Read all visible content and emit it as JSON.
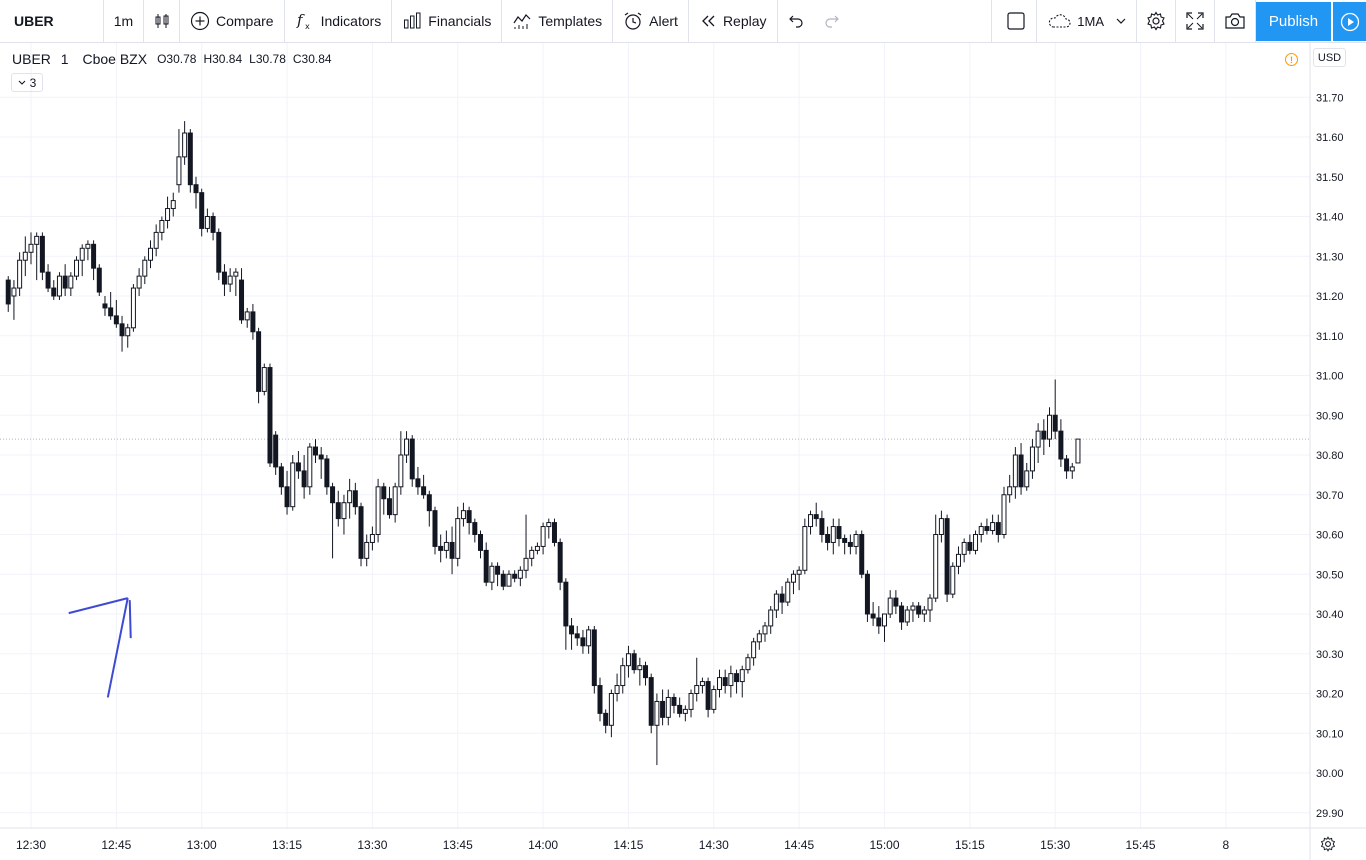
{
  "toolbar": {
    "symbol": "UBER",
    "interval": "1m",
    "compare_label": "Compare",
    "indicators_label": "Indicators",
    "financials_label": "Financials",
    "templates_label": "Templates",
    "alert_label": "Alert",
    "replay_label": "Replay",
    "layout_label": "1MA",
    "publish_label": "Publish"
  },
  "legend": {
    "symbol": "UBER",
    "interval": "1",
    "exchange": "Cboe BZX",
    "open_label": "O",
    "open": "30.78",
    "high_label": "H",
    "high": "30.84",
    "low_label": "L",
    "low": "30.78",
    "close_label": "C",
    "close": "30.84",
    "indicators_count": "3"
  },
  "price_axis": {
    "currency": "USD"
  },
  "colors": {
    "accent": "#2196f3",
    "candle": "#131722",
    "grid": "#f0f3fa",
    "annotation": "#3f4ad2",
    "warning": "#ff9800"
  },
  "chart_data": {
    "type": "candlestick",
    "title": "UBER · 1 · Cboe BZX",
    "ylim": [
      29.86,
      31.8
    ],
    "y_ticks": [
      "29.90",
      "30.00",
      "30.10",
      "30.20",
      "30.30",
      "30.40",
      "30.50",
      "30.60",
      "30.70",
      "30.80",
      "30.90",
      "31.00",
      "31.10",
      "31.20",
      "31.30",
      "31.40",
      "31.50",
      "31.60",
      "31.70"
    ],
    "x_ticks": [
      "12:30",
      "12:45",
      "13:00",
      "13:15",
      "13:30",
      "13:45",
      "14:00",
      "14:15",
      "14:30",
      "14:45",
      "15:00",
      "15:15",
      "15:30",
      "15:45",
      "8"
    ],
    "x_tick_minutes": [
      0,
      15,
      30,
      45,
      60,
      75,
      90,
      105,
      120,
      135,
      150,
      165,
      180,
      195,
      210
    ],
    "first_bar_minute": -4,
    "last_close": 30.84,
    "grid": true,
    "candles": [
      [
        31.24,
        31.25,
        31.16,
        31.18
      ],
      [
        31.2,
        31.24,
        31.14,
        31.22
      ],
      [
        31.22,
        31.31,
        31.2,
        31.29
      ],
      [
        31.29,
        31.35,
        31.25,
        31.31
      ],
      [
        31.31,
        31.36,
        31.28,
        31.33
      ],
      [
        31.33,
        31.36,
        31.24,
        31.35
      ],
      [
        31.35,
        31.36,
        31.24,
        31.26
      ],
      [
        31.26,
        31.28,
        31.21,
        31.22
      ],
      [
        31.22,
        31.24,
        31.19,
        31.2
      ],
      [
        31.2,
        31.26,
        31.19,
        31.25
      ],
      [
        31.25,
        31.28,
        31.2,
        31.22
      ],
      [
        31.22,
        31.26,
        31.2,
        31.25
      ],
      [
        31.25,
        31.3,
        31.24,
        31.29
      ],
      [
        31.29,
        31.33,
        31.25,
        31.32
      ],
      [
        31.32,
        31.34,
        31.29,
        31.33
      ],
      [
        31.33,
        31.34,
        31.24,
        31.27
      ],
      [
        31.27,
        31.28,
        31.2,
        31.21
      ],
      [
        31.18,
        31.2,
        31.15,
        31.17
      ],
      [
        31.17,
        31.21,
        31.14,
        31.15
      ],
      [
        31.15,
        31.19,
        31.12,
        31.13
      ],
      [
        31.13,
        31.15,
        31.06,
        31.1
      ],
      [
        31.1,
        31.13,
        31.07,
        31.12
      ],
      [
        31.12,
        31.23,
        31.11,
        31.22
      ],
      [
        31.22,
        31.27,
        31.2,
        31.25
      ],
      [
        31.25,
        31.3,
        31.23,
        31.29
      ],
      [
        31.29,
        31.34,
        31.27,
        31.32
      ],
      [
        31.32,
        31.38,
        31.3,
        31.36
      ],
      [
        31.36,
        31.4,
        31.34,
        31.39
      ],
      [
        31.39,
        31.45,
        31.37,
        31.42
      ],
      [
        31.42,
        31.46,
        31.4,
        31.44
      ],
      [
        31.48,
        31.62,
        31.46,
        31.55
      ],
      [
        31.55,
        31.64,
        31.53,
        31.61
      ],
      [
        31.61,
        31.62,
        31.46,
        31.48
      ],
      [
        31.48,
        31.5,
        31.42,
        31.46
      ],
      [
        31.46,
        31.47,
        31.35,
        31.37
      ],
      [
        31.37,
        31.42,
        31.36,
        31.4
      ],
      [
        31.4,
        31.41,
        31.34,
        31.36
      ],
      [
        31.36,
        31.37,
        31.24,
        31.26
      ],
      [
        31.26,
        31.28,
        31.2,
        31.23
      ],
      [
        31.23,
        31.27,
        31.21,
        31.25
      ],
      [
        31.25,
        31.27,
        31.2,
        31.26
      ],
      [
        31.24,
        31.27,
        31.13,
        31.14
      ],
      [
        31.14,
        31.17,
        31.12,
        31.16
      ],
      [
        31.16,
        31.18,
        31.09,
        31.11
      ],
      [
        31.11,
        31.12,
        30.93,
        30.96
      ],
      [
        30.96,
        31.03,
        30.95,
        31.02
      ],
      [
        31.02,
        31.03,
        30.77,
        30.78
      ],
      [
        30.85,
        30.86,
        30.75,
        30.77
      ],
      [
        30.77,
        30.78,
        30.7,
        30.72
      ],
      [
        30.72,
        30.76,
        30.65,
        30.67
      ],
      [
        30.67,
        30.8,
        30.66,
        30.78
      ],
      [
        30.78,
        30.81,
        30.74,
        30.76
      ],
      [
        30.76,
        30.8,
        30.69,
        30.72
      ],
      [
        30.72,
        30.83,
        30.7,
        30.82
      ],
      [
        30.82,
        30.84,
        30.78,
        30.8
      ],
      [
        30.8,
        30.82,
        30.74,
        30.79
      ],
      [
        30.79,
        30.8,
        30.7,
        30.72
      ],
      [
        30.72,
        30.73,
        30.54,
        30.68
      ],
      [
        30.68,
        30.71,
        30.62,
        30.64
      ],
      [
        30.64,
        30.7,
        30.6,
        30.68
      ],
      [
        30.68,
        30.74,
        30.64,
        30.71
      ],
      [
        30.71,
        30.73,
        30.65,
        30.67
      ],
      [
        30.67,
        30.68,
        30.52,
        30.54
      ],
      [
        30.54,
        30.6,
        30.52,
        30.58
      ],
      [
        30.58,
        30.62,
        30.56,
        30.6
      ],
      [
        30.6,
        30.74,
        30.58,
        30.72
      ],
      [
        30.72,
        30.73,
        30.65,
        30.69
      ],
      [
        30.69,
        30.72,
        30.64,
        30.65
      ],
      [
        30.65,
        30.73,
        30.63,
        30.72
      ],
      [
        30.72,
        30.86,
        30.7,
        30.8
      ],
      [
        30.8,
        30.86,
        30.78,
        30.84
      ],
      [
        30.84,
        30.85,
        30.72,
        30.74
      ],
      [
        30.74,
        30.77,
        30.7,
        30.72
      ],
      [
        30.72,
        30.75,
        30.69,
        30.7
      ],
      [
        30.7,
        30.71,
        30.62,
        30.66
      ],
      [
        30.66,
        30.67,
        30.55,
        30.57
      ],
      [
        30.57,
        30.6,
        30.53,
        30.56
      ],
      [
        30.56,
        30.61,
        30.54,
        30.58
      ],
      [
        30.58,
        30.62,
        30.5,
        30.54
      ],
      [
        30.54,
        30.67,
        30.52,
        30.64
      ],
      [
        30.64,
        30.68,
        30.62,
        30.66
      ],
      [
        30.66,
        30.67,
        30.6,
        30.63
      ],
      [
        30.63,
        30.64,
        30.58,
        30.6
      ],
      [
        30.6,
        30.61,
        30.54,
        30.56
      ],
      [
        30.56,
        30.58,
        30.47,
        30.48
      ],
      [
        30.48,
        30.53,
        30.46,
        30.52
      ],
      [
        30.52,
        30.53,
        30.47,
        30.5
      ],
      [
        30.5,
        30.51,
        30.46,
        30.47
      ],
      [
        30.47,
        30.51,
        30.47,
        30.5
      ],
      [
        30.5,
        30.51,
        30.48,
        30.49
      ],
      [
        30.49,
        30.52,
        30.47,
        30.51
      ],
      [
        30.51,
        30.65,
        30.49,
        30.54
      ],
      [
        30.54,
        30.57,
        30.52,
        30.56
      ],
      [
        30.56,
        30.58,
        30.55,
        30.57
      ],
      [
        30.57,
        30.63,
        30.55,
        30.62
      ],
      [
        30.62,
        30.64,
        30.59,
        30.63
      ],
      [
        30.63,
        30.64,
        30.57,
        30.58
      ],
      [
        30.58,
        30.59,
        30.46,
        30.48
      ],
      [
        30.48,
        30.49,
        30.31,
        30.37
      ],
      [
        30.37,
        30.39,
        30.31,
        30.35
      ],
      [
        30.35,
        30.37,
        30.32,
        30.34
      ],
      [
        30.34,
        30.36,
        30.3,
        30.32
      ],
      [
        30.32,
        30.37,
        30.3,
        30.36
      ],
      [
        30.36,
        30.37,
        30.2,
        30.22
      ],
      [
        30.22,
        30.24,
        30.13,
        30.15
      ],
      [
        30.15,
        30.16,
        30.1,
        30.12
      ],
      [
        30.12,
        30.21,
        30.09,
        30.2
      ],
      [
        30.2,
        30.25,
        30.18,
        30.22
      ],
      [
        30.22,
        30.29,
        30.2,
        30.27
      ],
      [
        30.27,
        30.32,
        30.24,
        30.3
      ],
      [
        30.3,
        30.31,
        30.25,
        30.26
      ],
      [
        30.26,
        30.29,
        30.22,
        30.27
      ],
      [
        30.27,
        30.28,
        30.22,
        30.24
      ],
      [
        30.24,
        30.25,
        30.1,
        30.12
      ],
      [
        30.12,
        30.2,
        30.02,
        30.18
      ],
      [
        30.18,
        30.21,
        30.12,
        30.14
      ],
      [
        30.14,
        30.21,
        30.12,
        30.19
      ],
      [
        30.19,
        30.2,
        30.15,
        30.17
      ],
      [
        30.17,
        30.19,
        30.14,
        30.15
      ],
      [
        30.15,
        30.17,
        30.13,
        30.16
      ],
      [
        30.16,
        30.21,
        30.14,
        30.2
      ],
      [
        30.2,
        30.29,
        30.18,
        30.22
      ],
      [
        30.22,
        30.24,
        30.2,
        30.23
      ],
      [
        30.23,
        30.24,
        30.14,
        30.16
      ],
      [
        30.16,
        30.22,
        30.15,
        30.21
      ],
      [
        30.21,
        30.26,
        30.19,
        30.24
      ],
      [
        30.24,
        30.26,
        30.2,
        30.22
      ],
      [
        30.22,
        30.27,
        30.19,
        30.25
      ],
      [
        30.25,
        30.26,
        30.2,
        30.23
      ],
      [
        30.23,
        30.27,
        30.19,
        30.26
      ],
      [
        30.26,
        30.3,
        30.25,
        30.29
      ],
      [
        30.29,
        30.34,
        30.27,
        30.33
      ],
      [
        30.33,
        30.36,
        30.31,
        30.35
      ],
      [
        30.35,
        30.38,
        30.33,
        30.37
      ],
      [
        30.37,
        30.42,
        30.35,
        30.41
      ],
      [
        30.41,
        30.46,
        30.39,
        30.45
      ],
      [
        30.45,
        30.47,
        30.4,
        30.43
      ],
      [
        30.43,
        30.49,
        30.42,
        30.48
      ],
      [
        30.48,
        30.51,
        30.45,
        30.5
      ],
      [
        30.5,
        30.52,
        30.46,
        30.51
      ],
      [
        30.51,
        30.64,
        30.5,
        30.62
      ],
      [
        30.62,
        30.66,
        30.6,
        30.65
      ],
      [
        30.65,
        30.68,
        30.62,
        30.64
      ],
      [
        30.64,
        30.66,
        30.58,
        30.6
      ],
      [
        30.6,
        30.62,
        30.56,
        30.58
      ],
      [
        30.58,
        30.64,
        30.55,
        30.62
      ],
      [
        30.62,
        30.64,
        30.57,
        30.59
      ],
      [
        30.59,
        30.6,
        30.55,
        30.58
      ],
      [
        30.58,
        30.6,
        30.55,
        30.57
      ],
      [
        30.57,
        30.61,
        30.55,
        30.6
      ],
      [
        30.6,
        30.61,
        30.49,
        30.5
      ],
      [
        30.5,
        30.51,
        30.38,
        30.4
      ],
      [
        30.4,
        30.43,
        30.37,
        30.39
      ],
      [
        30.39,
        30.42,
        30.35,
        30.37
      ],
      [
        30.37,
        30.4,
        30.33,
        30.4
      ],
      [
        30.4,
        30.46,
        30.39,
        30.44
      ],
      [
        30.44,
        30.46,
        30.4,
        30.42
      ],
      [
        30.42,
        30.43,
        30.36,
        30.38
      ],
      [
        30.38,
        30.42,
        30.37,
        30.41
      ],
      [
        30.41,
        30.43,
        30.38,
        30.42
      ],
      [
        30.42,
        30.43,
        30.39,
        30.4
      ],
      [
        30.4,
        30.42,
        30.38,
        30.41
      ],
      [
        30.41,
        30.45,
        30.38,
        30.44
      ],
      [
        30.44,
        30.65,
        30.43,
        30.6
      ],
      [
        30.6,
        30.66,
        30.58,
        30.64
      ],
      [
        30.64,
        30.65,
        30.43,
        30.45
      ],
      [
        30.45,
        30.53,
        30.44,
        30.52
      ],
      [
        30.52,
        30.57,
        30.5,
        30.55
      ],
      [
        30.55,
        30.59,
        30.53,
        30.58
      ],
      [
        30.58,
        30.6,
        30.55,
        30.56
      ],
      [
        30.56,
        30.61,
        30.55,
        30.6
      ],
      [
        30.6,
        30.63,
        30.58,
        30.62
      ],
      [
        30.62,
        30.64,
        30.6,
        30.61
      ],
      [
        30.61,
        30.65,
        30.6,
        30.63
      ],
      [
        30.63,
        30.65,
        30.58,
        30.6
      ],
      [
        30.6,
        30.72,
        30.59,
        30.7
      ],
      [
        30.7,
        30.75,
        30.68,
        30.72
      ],
      [
        30.72,
        30.82,
        30.69,
        30.8
      ],
      [
        30.8,
        30.83,
        30.7,
        30.72
      ],
      [
        30.72,
        30.78,
        30.71,
        30.76
      ],
      [
        30.76,
        30.84,
        30.74,
        30.82
      ],
      [
        30.82,
        30.88,
        30.78,
        30.86
      ],
      [
        30.86,
        30.89,
        30.8,
        30.84
      ],
      [
        30.84,
        30.92,
        30.82,
        30.9
      ],
      [
        30.9,
        30.99,
        30.84,
        30.86
      ],
      [
        30.86,
        30.89,
        30.77,
        30.79
      ],
      [
        30.79,
        30.8,
        30.74,
        30.76
      ],
      [
        30.76,
        30.78,
        30.74,
        30.77
      ],
      [
        30.78,
        30.84,
        30.78,
        30.84
      ]
    ],
    "annotation": {
      "type": "arrow",
      "from": [
        13.5,
        30.19
      ],
      "to": [
        17,
        30.44
      ]
    }
  }
}
